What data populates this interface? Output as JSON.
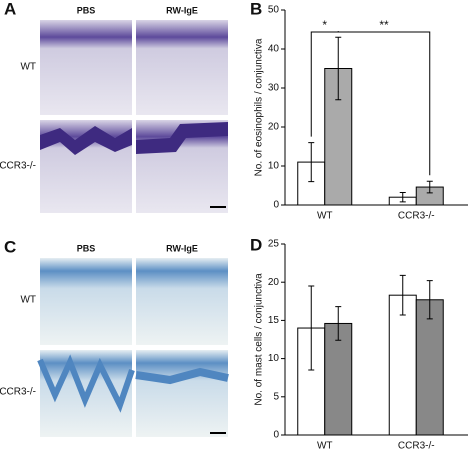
{
  "panels": [
    {
      "label": "A",
      "columns": [
        "PBS",
        "RW-IgE"
      ],
      "rows": [
        "WT",
        "CCR3-/-"
      ]
    },
    {
      "label": "C",
      "columns": [
        "PBS",
        "RW-IgE"
      ],
      "rows": [
        "WT",
        "CCR3-/-"
      ]
    }
  ],
  "chart_data": [
    {
      "type": "bar",
      "panel_label": "B",
      "ylabel": "No. of eosinophils / conjunctiva",
      "categories": [
        "WT",
        "CCR3-/-"
      ],
      "series": [
        {
          "color": "#ffffff",
          "values": [
            11,
            2
          ],
          "errors": [
            5,
            1.2
          ]
        },
        {
          "color": "#aaaaaa",
          "values": [
            35,
            4.6
          ],
          "errors": [
            8,
            1.5
          ]
        }
      ],
      "ylim": [
        0,
        50
      ],
      "yticks": [
        0,
        10,
        20,
        30,
        40,
        50
      ],
      "annotations": [
        "*",
        "**"
      ]
    },
    {
      "type": "bar",
      "panel_label": "D",
      "ylabel": "No. of mast cells / conjunctiva",
      "categories": [
        "WT",
        "CCR3-/-"
      ],
      "series": [
        {
          "color": "#ffffff",
          "values": [
            14,
            18.3
          ],
          "errors": [
            5.5,
            2.6
          ]
        },
        {
          "color": "#888888",
          "values": [
            14.6,
            17.7
          ],
          "errors": [
            2.2,
            2.5
          ]
        }
      ],
      "ylim": [
        0,
        25
      ],
      "yticks": [
        0,
        5,
        10,
        15,
        20,
        25
      ]
    }
  ]
}
